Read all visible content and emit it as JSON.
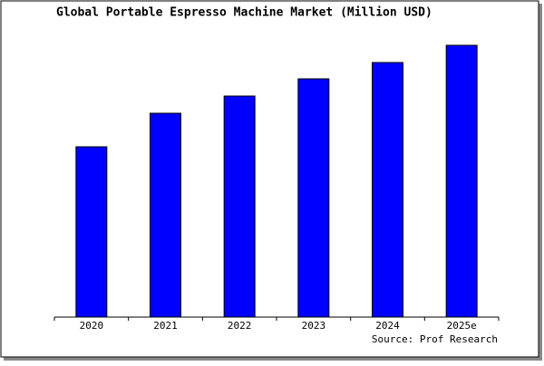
{
  "chart_data": {
    "type": "bar",
    "title": "Global Portable Espresso Machine Market (Million USD)",
    "categories": [
      "2020",
      "2021",
      "2022",
      "2023",
      "2024",
      "2025e"
    ],
    "values": [
      188,
      225,
      244,
      263,
      281,
      300
    ],
    "color": "#0000ff",
    "ylim": [
      0,
      300
    ],
    "source": "Source: Prof Research"
  }
}
